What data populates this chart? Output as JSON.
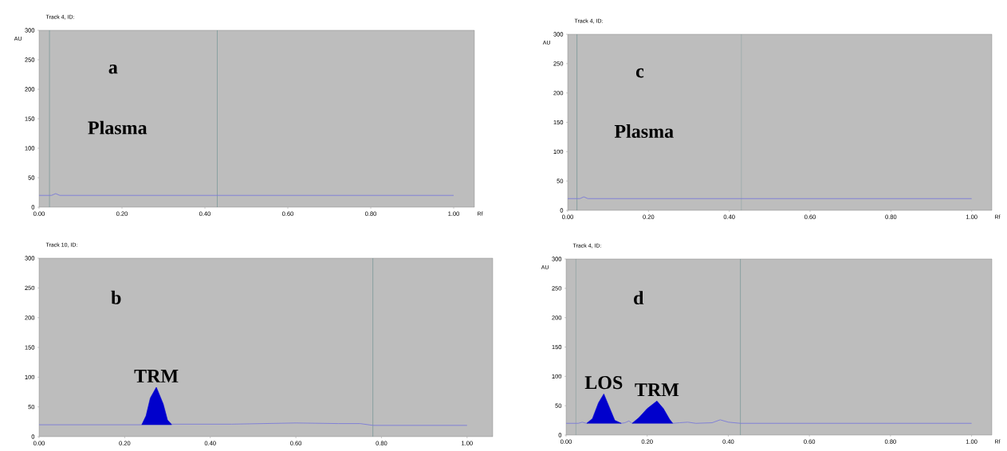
{
  "chart_data": [
    {
      "type": "line",
      "title": "Track 4, ID:",
      "xlabel": "Rf",
      "ylabel": "AU",
      "xlim": [
        0,
        1.05
      ],
      "ylim": [
        0,
        300
      ],
      "xticks": [
        {
          "value": 0,
          "label": "0.00"
        },
        {
          "value": 0.2,
          "label": "0.20"
        },
        {
          "value": 0.4,
          "label": "0.40"
        },
        {
          "value": 0.6,
          "label": "0.60"
        },
        {
          "value": 0.8,
          "label": "0.80"
        },
        {
          "value": 1.0,
          "label": "1.00"
        }
      ],
      "yticks": [
        0,
        50,
        100,
        150,
        200,
        250,
        300
      ],
      "annotations": [
        "a",
        "Plasma"
      ],
      "ref_lines": [
        {
          "axis": "x",
          "value": 0.025,
          "color": "#5f8a8a"
        },
        {
          "axis": "x",
          "value": 0.43,
          "color": "#5f8a8a"
        }
      ],
      "series": [
        {
          "color": "#7b7bd8",
          "x": [
            0,
            0.03,
            0.04,
            0.05,
            0.2,
            0.43,
            1.0
          ],
          "values": [
            20,
            20,
            23,
            20,
            20,
            20,
            20
          ]
        }
      ]
    },
    {
      "type": "line",
      "title": "Track 10, ID:",
      "xlim": [
        0,
        1.06
      ],
      "ylim": [
        0,
        300
      ],
      "xticks": [
        {
          "value": 0,
          "label": "0.00"
        },
        {
          "value": 0.2,
          "label": "0.20"
        },
        {
          "value": 0.4,
          "label": "0.40"
        },
        {
          "value": 0.6,
          "label": "0.60"
        },
        {
          "value": 0.8,
          "label": "0.80"
        },
        {
          "value": 1.0,
          "label": "1.00"
        }
      ],
      "yticks": [
        0,
        50,
        100,
        150,
        200,
        250,
        300
      ],
      "annotations": [
        "b",
        {
          "text": "TRM",
          "x": 0.274,
          "y": 83
        }
      ],
      "ref_lines": [
        {
          "axis": "x",
          "value": 0.78,
          "color": "#5f8a8a"
        }
      ],
      "series": [
        {
          "color": "#7b7bd8",
          "x": [
            0,
            0.24,
            0.25,
            0.26,
            0.274,
            0.29,
            0.3,
            0.31,
            0.45,
            0.6,
            0.7,
            0.75,
            0.78,
            1.0
          ],
          "values": [
            20,
            20,
            35,
            65,
            83,
            55,
            28,
            21,
            21,
            23,
            22,
            22,
            19,
            19
          ]
        },
        {
          "type": "area",
          "color": "#0000cc",
          "x": [
            0.24,
            0.25,
            0.26,
            0.274,
            0.29,
            0.3,
            0.31
          ],
          "values": [
            20,
            35,
            65,
            83,
            55,
            28,
            20
          ]
        }
      ]
    },
    {
      "type": "line",
      "title": "Track 4, ID:",
      "xlabel": "Rf",
      "ylabel": "AU",
      "xlim": [
        0,
        1.05
      ],
      "ylim": [
        0,
        300
      ],
      "xticks": [
        {
          "value": 0,
          "label": "0.00"
        },
        {
          "value": 0.2,
          "label": "0.20"
        },
        {
          "value": 0.4,
          "label": "0.40"
        },
        {
          "value": 0.6,
          "label": "0.60"
        },
        {
          "value": 0.8,
          "label": "0.80"
        },
        {
          "value": 1.0,
          "label": "1.00"
        }
      ],
      "yticks": [
        0,
        50,
        100,
        150,
        200,
        250,
        300
      ],
      "annotations": [
        "c",
        "Plasma"
      ],
      "ref_lines": [
        {
          "axis": "x",
          "value": 0.023,
          "color": "#5f8a8a"
        },
        {
          "axis": "x",
          "value": 0.43,
          "color": "#5f8a8a"
        }
      ],
      "series": [
        {
          "color": "#7b7bd8",
          "x": [
            0,
            0.03,
            0.04,
            0.05,
            0.2,
            0.43,
            1.0
          ],
          "values": [
            20,
            20,
            23,
            20,
            20,
            20,
            20
          ]
        }
      ]
    },
    {
      "type": "line",
      "title": "Track 4, ID:",
      "xlabel": "Rf",
      "ylabel": "AU",
      "xlim": [
        0,
        1.05
      ],
      "ylim": [
        0,
        300
      ],
      "xticks": [
        {
          "value": 0,
          "label": "0.00"
        },
        {
          "value": 0.2,
          "label": "0.20"
        },
        {
          "value": 0.4,
          "label": "0.40"
        },
        {
          "value": 0.6,
          "label": "0.60"
        },
        {
          "value": 0.8,
          "label": "0.80"
        },
        {
          "value": 1.0,
          "label": "1.00"
        }
      ],
      "yticks": [
        0,
        50,
        100,
        150,
        200,
        250,
        300
      ],
      "annotations": [
        "d",
        {
          "text": "LOS",
          "x": 0.093,
          "y": 70
        },
        {
          "text": "TRM",
          "x": 0.224,
          "y": 58
        }
      ],
      "ref_lines": [
        {
          "axis": "x",
          "value": 0.024,
          "color": "#5f8a8a"
        },
        {
          "axis": "x",
          "value": 0.43,
          "color": "#5f8a8a"
        }
      ],
      "series": [
        {
          "color": "#7b7bd8",
          "x": [
            0,
            0.03,
            0.04,
            0.05,
            0.065,
            0.08,
            0.093,
            0.105,
            0.12,
            0.136,
            0.145,
            0.155,
            0.163,
            0.18,
            0.2,
            0.224,
            0.24,
            0.255,
            0.263,
            0.28,
            0.3,
            0.32,
            0.36,
            0.38,
            0.4,
            0.43,
            1.0
          ],
          "values": [
            20,
            20,
            22,
            20,
            28,
            55,
            70,
            50,
            25,
            20,
            21,
            24,
            20,
            30,
            45,
            58,
            45,
            27,
            20,
            21,
            22,
            20,
            21,
            26,
            22,
            20,
            20
          ]
        },
        {
          "type": "area",
          "color": "#0000cc",
          "x": [
            0.051,
            0.065,
            0.08,
            0.093,
            0.105,
            0.12,
            0.136
          ],
          "values": [
            20,
            28,
            55,
            70,
            50,
            25,
            20
          ]
        },
        {
          "type": "area",
          "color": "#0000cc",
          "x": [
            0.163,
            0.18,
            0.2,
            0.224,
            0.24,
            0.255,
            0.263
          ],
          "values": [
            20,
            30,
            45,
            58,
            45,
            27,
            20
          ]
        }
      ]
    }
  ]
}
